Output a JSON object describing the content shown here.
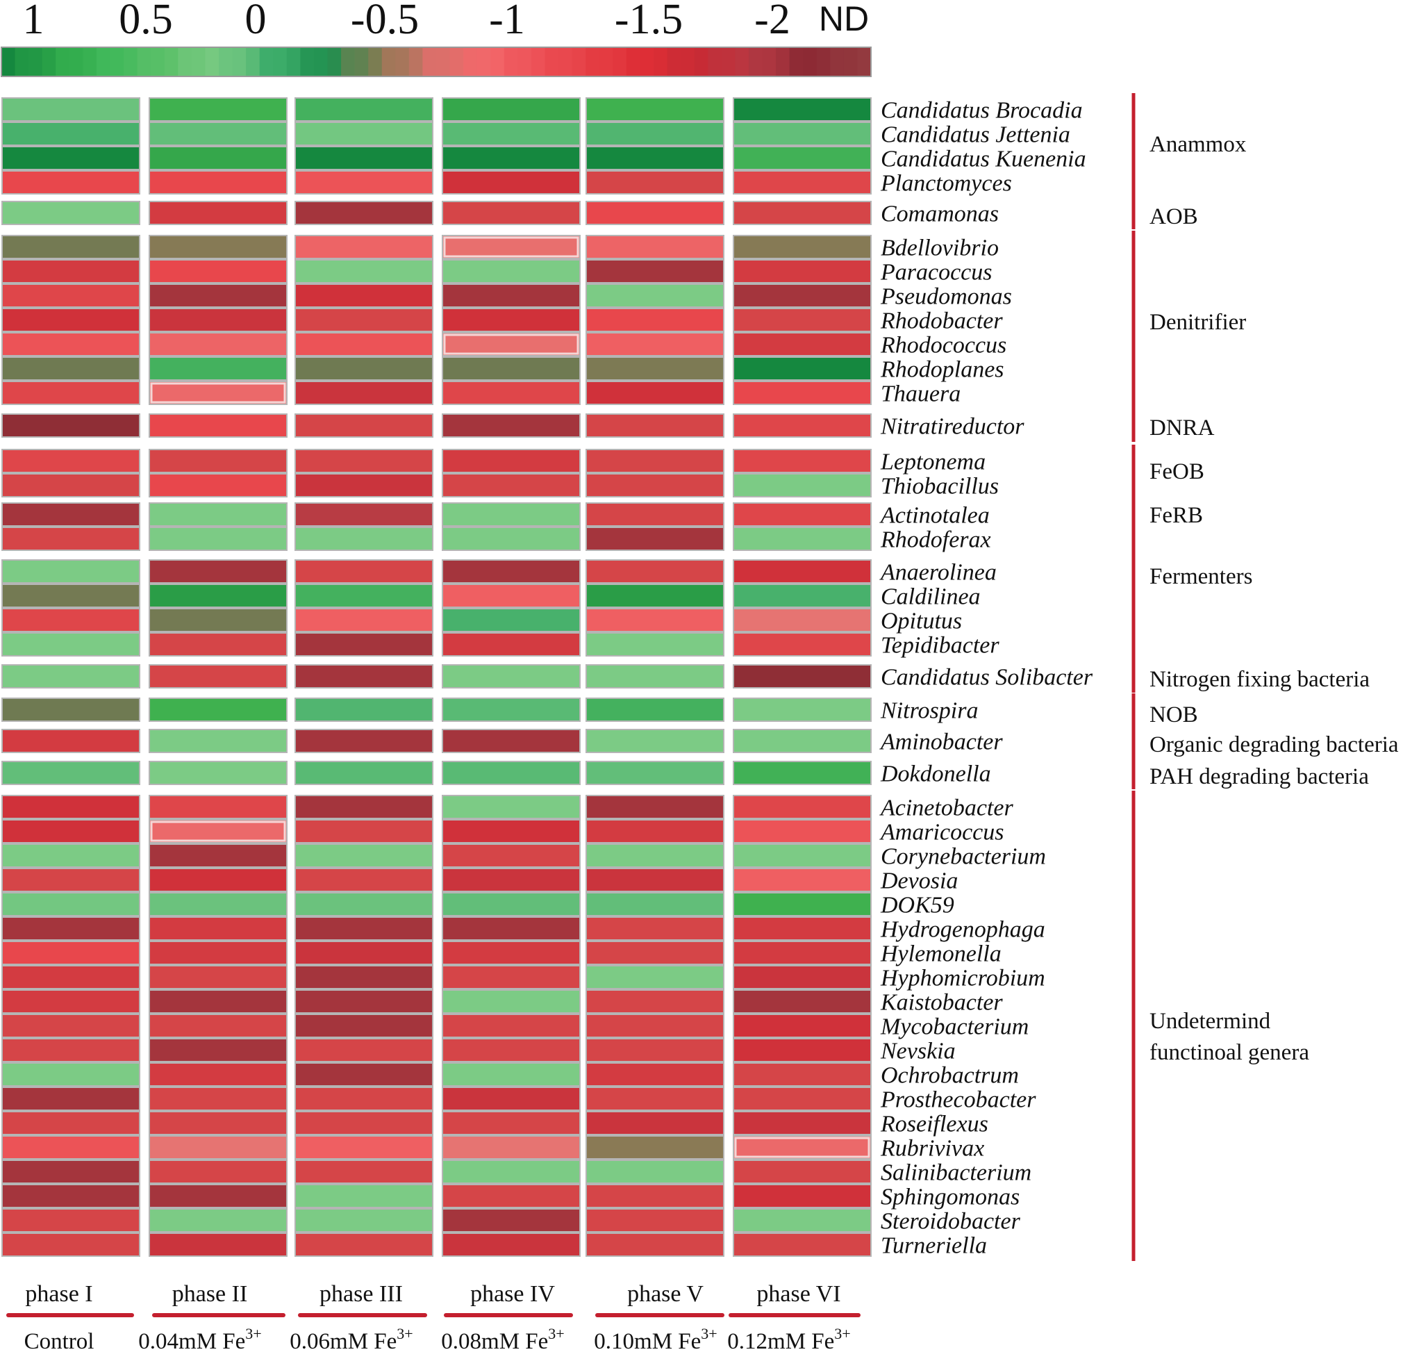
{
  "chart_data": {
    "type": "heatmap",
    "title": "",
    "color_scale": {
      "tick_labels": [
        "1",
        "0.5",
        "0",
        "-0.5",
        "-1",
        "-1.5",
        "-2"
      ],
      "nd_label": "ND",
      "colors": [
        "#15883f",
        "#2ea84a",
        "#41b95a",
        "#5dc06a",
        "#7ccb85",
        "#3fae6b",
        "#1f8f4f",
        "#8a7a52",
        "#d9706a",
        "#f3676a",
        "#ec4f55",
        "#e53e44",
        "#dd2d35",
        "#c62b35",
        "#b63a44",
        "#8c2a34",
        "#933a3f"
      ]
    },
    "columns": [
      {
        "phase": "phase I",
        "treatment": "Control",
        "sup": ""
      },
      {
        "phase": "phase II",
        "treatment": "0.04mM Fe",
        "sup": "3+"
      },
      {
        "phase": "phase III",
        "treatment": "0.06mM Fe",
        "sup": "3+"
      },
      {
        "phase": "phase IV",
        "treatment": "0.08mM Fe",
        "sup": "3+"
      },
      {
        "phase": "phase V",
        "treatment": "0.10mM Fe",
        "sup": "3+"
      },
      {
        "phase": "phase VI",
        "treatment": "0.12mM Fe",
        "sup": "3+"
      }
    ],
    "groups": [
      {
        "name": [
          "Anammox"
        ],
        "rows": [
          {
            "genus": "Candidatus Brocadia",
            "values": [
              0.4,
              0.8,
              0.7,
              0.85,
              0.8,
              1.0
            ]
          },
          {
            "genus": "Candidatus Jettenia",
            "values": [
              0.6,
              0.45,
              0.35,
              0.5,
              0.55,
              0.45
            ]
          },
          {
            "genus": "Candidatus Kuenenia",
            "values": [
              1.0,
              0.85,
              1.0,
              1.0,
              1.0,
              0.75
            ]
          },
          {
            "genus": "Planctomyces",
            "values": [
              -1.4,
              -1.4,
              -1.3,
              -1.8,
              -1.6,
              -1.5
            ]
          }
        ]
      },
      {
        "name": [
          "AOB"
        ],
        "rows": [
          {
            "genus": "Comamonas",
            "values": [
              0.3,
              -1.7,
              -2.1,
              -1.6,
              -1.4,
              -1.6
            ]
          }
        ]
      },
      {
        "name": [
          "Denitrifier"
        ],
        "rows": [
          {
            "genus": "Bdellovibrio",
            "values": [
              -0.55,
              -0.75,
              -1.15,
              -1.05,
              -1.15,
              -0.75
            ]
          },
          {
            "genus": "Paracoccus",
            "values": [
              -1.7,
              -1.4,
              0.3,
              0.3,
              -2.1,
              -1.7
            ]
          },
          {
            "genus": "Pseudomonas",
            "values": [
              -1.5,
              -2.1,
              -1.8,
              -2.1,
              0.3,
              -2.1
            ]
          },
          {
            "genus": "Rhodobacter",
            "values": [
              -1.8,
              -1.85,
              -1.6,
              -1.8,
              -1.4,
              -1.6
            ]
          },
          {
            "genus": "Rhodococcus",
            "values": [
              -1.3,
              -1.15,
              -1.3,
              -1.05,
              -1.2,
              -1.7
            ]
          },
          {
            "genus": "Rhodoplanes",
            "values": [
              -0.5,
              0.7,
              -0.5,
              -0.5,
              -0.65,
              1.0
            ]
          },
          {
            "genus": "Thauera",
            "values": [
              -1.5,
              -1.1,
              -1.85,
              -1.5,
              -1.8,
              -1.4
            ]
          }
        ]
      },
      {
        "name": [
          "DNRA"
        ],
        "rows": [
          {
            "genus": "Nitratireductor",
            "values": [
              -2.2,
              -1.4,
              -1.6,
              -2.1,
              -1.6,
              -1.5
            ]
          }
        ]
      },
      {
        "name": [
          "FeOB"
        ],
        "rows": [
          {
            "genus": "Leptonema",
            "values": [
              -1.5,
              -1.6,
              -1.6,
              -1.7,
              -1.6,
              -1.5
            ]
          },
          {
            "genus": "Thiobacillus",
            "values": [
              -1.6,
              -1.4,
              -1.85,
              -1.6,
              -1.6,
              0.3
            ]
          }
        ]
      },
      {
        "name": [
          "FeRB"
        ],
        "rows": [
          {
            "genus": "Actinotalea",
            "values": [
              -2.1,
              0.3,
              -2.0,
              0.3,
              -1.6,
              -1.5
            ]
          },
          {
            "genus": "Rhodoferax",
            "values": [
              -1.6,
              0.3,
              0.3,
              0.3,
              -2.1,
              0.3
            ]
          }
        ]
      },
      {
        "name": [
          "Fermenters"
        ],
        "rows": [
          {
            "genus": "Anaerolinea",
            "values": [
              0.3,
              -2.1,
              -1.6,
              -2.1,
              -1.6,
              -1.8
            ]
          },
          {
            "genus": "Caldilinea",
            "values": [
              -0.55,
              0.9,
              0.7,
              -1.2,
              0.9,
              0.6
            ]
          },
          {
            "genus": "Opitutus",
            "values": [
              -1.5,
              -0.55,
              -1.2,
              0.6,
              -1.2,
              -1.0
            ]
          },
          {
            "genus": "Tepidibacter",
            "values": [
              0.3,
              -1.6,
              -2.1,
              -1.7,
              0.3,
              -1.5
            ]
          }
        ]
      },
      {
        "name": [
          "Nitrogen fixing bacteria"
        ],
        "rows": [
          {
            "genus": "Candidatus Solibacter",
            "values": [
              0.3,
              -1.6,
              -2.1,
              0.3,
              0.3,
              -2.2
            ]
          }
        ]
      },
      {
        "name": [
          "NOB"
        ],
        "rows": [
          {
            "genus": "Nitrospira",
            "values": [
              -0.5,
              0.8,
              0.55,
              0.5,
              0.7,
              0.3
            ]
          }
        ]
      },
      {
        "name": [
          "Organic degrading bacteria"
        ],
        "rows": [
          {
            "genus": "Aminobacter",
            "values": [
              -1.7,
              0.3,
              -2.1,
              -2.1,
              0.3,
              0.3
            ]
          }
        ]
      },
      {
        "name": [
          "PAH degrading bacteria"
        ],
        "rows": [
          {
            "genus": "Dokdonella",
            "values": [
              0.45,
              0.3,
              0.5,
              0.5,
              0.45,
              0.75
            ]
          }
        ]
      },
      {
        "name": [
          "Undetermind",
          "functinoal genera"
        ],
        "rows": [
          {
            "genus": "Acinetobacter",
            "values": [
              -1.8,
              -1.5,
              -2.1,
              0.3,
              -2.1,
              -1.5
            ]
          },
          {
            "genus": "Amaricoccus",
            "values": [
              -1.8,
              -1.1,
              -1.6,
              -1.8,
              -1.7,
              -1.3
            ]
          },
          {
            "genus": "Corynebacterium",
            "values": [
              0.3,
              -2.1,
              0.3,
              -1.6,
              0.3,
              0.3
            ]
          },
          {
            "genus": "Devosia",
            "values": [
              -1.6,
              -1.8,
              -1.6,
              -1.85,
              -1.85,
              -1.2
            ]
          },
          {
            "genus": "DOK59",
            "values": [
              0.35,
              0.4,
              0.4,
              0.45,
              0.45,
              0.8
            ]
          },
          {
            "genus": "Hydrogenophaga",
            "values": [
              -2.1,
              -1.7,
              -2.1,
              -2.1,
              -1.6,
              -1.7
            ]
          },
          {
            "genus": "Hylemonella",
            "values": [
              -1.4,
              -1.7,
              -1.85,
              -1.7,
              -1.6,
              -1.7
            ]
          },
          {
            "genus": "Hyphomicrobium",
            "values": [
              -1.7,
              -1.6,
              -2.1,
              -1.6,
              0.3,
              -1.85
            ]
          },
          {
            "genus": "Kaistobacter",
            "values": [
              -1.7,
              -2.1,
              -2.1,
              0.3,
              -1.6,
              -2.1
            ]
          },
          {
            "genus": "Mycobacterium",
            "values": [
              -1.6,
              -1.6,
              -2.1,
              -1.6,
              -1.6,
              -1.8
            ]
          },
          {
            "genus": "Nevskia",
            "values": [
              -1.6,
              -2.1,
              -1.6,
              -1.6,
              -1.6,
              -1.8
            ]
          },
          {
            "genus": "Ochrobactrum",
            "values": [
              0.3,
              -1.7,
              -2.1,
              0.3,
              -1.7,
              -1.6
            ]
          },
          {
            "genus": "Prosthecobacter",
            "values": [
              -2.1,
              -1.6,
              -1.6,
              -1.85,
              -1.6,
              -1.6
            ]
          },
          {
            "genus": "Roseiflexus",
            "values": [
              -1.6,
              -1.6,
              -1.6,
              -1.6,
              -1.85,
              -1.85
            ]
          },
          {
            "genus": "Rubrivivax",
            "values": [
              -1.3,
              -1.0,
              -1.2,
              -1.0,
              -0.8,
              -1.1
            ]
          },
          {
            "genus": "Salinibacterium",
            "values": [
              -2.1,
              -1.6,
              -1.6,
              0.3,
              0.3,
              -1.6
            ]
          },
          {
            "genus": "Sphingomonas",
            "values": [
              -2.1,
              -2.1,
              0.3,
              -1.6,
              -1.6,
              -1.8
            ]
          },
          {
            "genus": "Steroidobacter",
            "values": [
              -1.6,
              0.3,
              0.3,
              -2.1,
              -1.6,
              0.3
            ]
          },
          {
            "genus": "Turneriella",
            "values": [
              -1.6,
              -1.85,
              -1.6,
              -1.85,
              -1.6,
              -1.6
            ]
          }
        ]
      }
    ],
    "nd_cells": [
      {
        "genus": "Bdellovibrio",
        "column": 3
      },
      {
        "genus": "Rhodococcus",
        "column": 3
      },
      {
        "genus": "Thauera",
        "column": 1
      },
      {
        "genus": "Amaricoccus",
        "column": 1
      },
      {
        "genus": "Rubrivivax",
        "column": 5
      }
    ]
  }
}
